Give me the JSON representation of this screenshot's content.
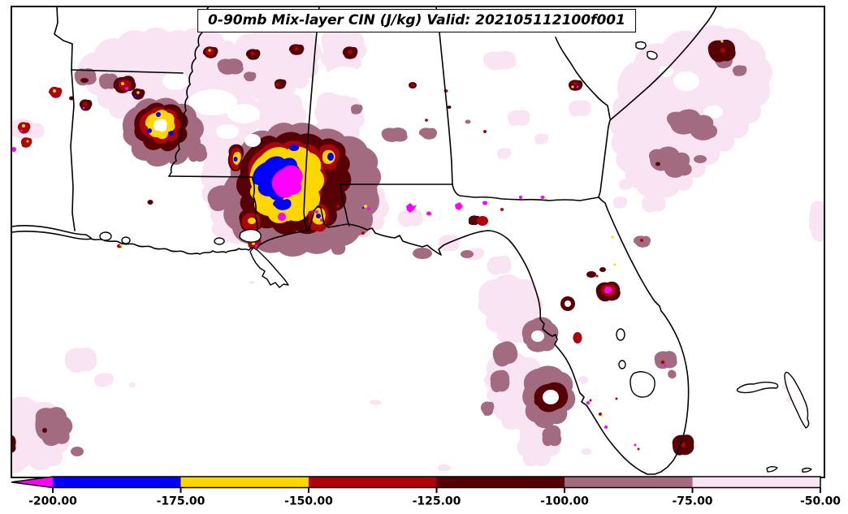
{
  "title": {
    "text": "0-90mb Mix-layer CIN (J/kg) Valid: 202105112100f001"
  },
  "palette": {
    "magenta": "#FF00FF",
    "blue": "#0000FF",
    "yellow": "#FFD700",
    "red": "#AC0409",
    "dark_maroon": "#560006",
    "mauve": "#A26B80",
    "light_pink": "#F8E4F2"
  },
  "colorbar": {
    "tick_labels": [
      "-200.00",
      "-175.00",
      "-150.00",
      "-125.00",
      "-100.00",
      "-75.00",
      "-50.00"
    ],
    "segment_colors": [
      "#0000FF",
      "#FFD700",
      "#AC0409",
      "#560006",
      "#A26B80",
      "#F8E4F2"
    ],
    "arrow_color": "#FF00FF"
  },
  "chart_data": {
    "type": "heatmap",
    "subtype": "filled-contour-map",
    "title": "0-90mb Mix-layer CIN (J/kg) Valid: 202105112100f001",
    "variable": "0-90mb Mix-layer CIN",
    "units": "J/kg",
    "valid_time": "202105112100",
    "forecast_hour": "f001",
    "region": "Southeastern United States, Gulf of Mexico and western Atlantic (AR, LA, MS, AL, GA, FL visible)",
    "levels": [
      -200,
      -175,
      -150,
      -125,
      -100,
      -75,
      -50
    ],
    "colorbar": {
      "orientation": "horizontal",
      "position": "bottom",
      "extend": "min",
      "tick_labels": [
        "-200.00",
        "-175.00",
        "-150.00",
        "-125.00",
        "-100.00",
        "-75.00",
        "-50.00"
      ],
      "bins": [
        {
          "range": "< -200",
          "color": "#FF00FF"
        },
        {
          "range": "-200 to -175",
          "color": "#0000FF"
        },
        {
          "range": "-175 to -150",
          "color": "#FFD700"
        },
        {
          "range": "-150 to -125",
          "color": "#AC0409"
        },
        {
          "range": "-125 to -100",
          "color": "#560006"
        },
        {
          "range": "-100 to -75",
          "color": "#A26B80"
        },
        {
          "range": "-75 to -50",
          "color": "#F8E4F2"
        }
      ]
    },
    "depicted_features": [
      "Strongest CIN core (< -200 J/kg, magenta/blue) over the Louisiana-Mississippi-Alabama border region",
      "Secondary strong CIN pocket (< -175 J/kg) over central Arkansas",
      "Broad weak CIN (-75 to -50 J/kg, pale pink) over Arkansas/Mississippi/Alabama and offshore Atlantic",
      "Moderate CIN rings (-125 to -75 J/kg) off the Florida west coast and near the Carolina coast"
    ]
  }
}
